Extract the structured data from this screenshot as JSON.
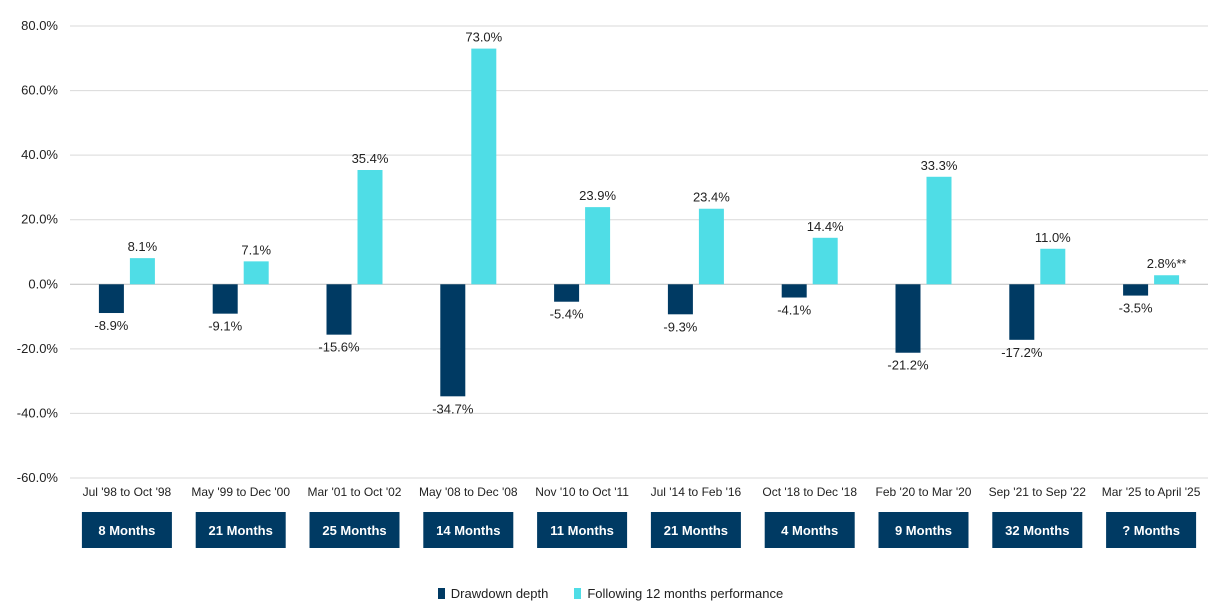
{
  "chart_data": {
    "type": "bar",
    "title": "",
    "xlabel": "",
    "ylabel": "",
    "ylim": [
      -60,
      80
    ],
    "yticks": [
      "80.0%",
      "60.0%",
      "40.0%",
      "20.0%",
      "0.0%",
      "-20.0%",
      "-40.0%",
      "-60.0%"
    ],
    "ytick_values": [
      80,
      60,
      40,
      20,
      0,
      -20,
      -40,
      -60
    ],
    "grid": true,
    "legend_position": "bottom-center",
    "categories": [
      "Jul '98 to Oct '98",
      "May '99 to Dec '00",
      "Mar '01 to Oct '02",
      "May '08 to Dec '08",
      "Nov '10 to Oct '11",
      "Jul '14 to Feb '16",
      "Oct '18 to Dec '18",
      "Feb '20 to Mar '20",
      "Sep '21 to Sep '22",
      "Mar '25 to April '25"
    ],
    "series": [
      {
        "name": "Drawdown depth",
        "color": "#003a63",
        "values": [
          -8.9,
          -9.1,
          -15.6,
          -34.7,
          -5.4,
          -9.3,
          -4.1,
          -21.2,
          -17.2,
          -3.5
        ],
        "labels": [
          "-8.9%",
          "-9.1%",
          "-15.6%",
          "-34.7%",
          "-5.4%",
          "-9.3%",
          "-4.1%",
          "-21.2%",
          "-17.2%",
          "-3.5%"
        ]
      },
      {
        "name": "Following 12 months performance",
        "color": "#4fdde6",
        "values": [
          8.1,
          7.1,
          35.4,
          73.0,
          23.9,
          23.4,
          14.4,
          33.3,
          11.0,
          2.8
        ],
        "labels": [
          "8.1%",
          "7.1%",
          "35.4%",
          "73.0%",
          "23.9%",
          "23.4%",
          "14.4%",
          "33.3%",
          "11.0%",
          "2.8%**"
        ]
      }
    ],
    "durations": [
      "8 Months",
      "21 Months",
      "25 Months",
      "14 Months",
      "11 Months",
      "21 Months",
      "4 Months",
      "9 Months",
      "32 Months",
      "? Months"
    ],
    "duration_box_color": "#003a63"
  },
  "legend": {
    "items": [
      {
        "label": "Drawdown depth",
        "color": "#003a63"
      },
      {
        "label": "Following 12 months performance",
        "color": "#4fdde6"
      }
    ]
  }
}
